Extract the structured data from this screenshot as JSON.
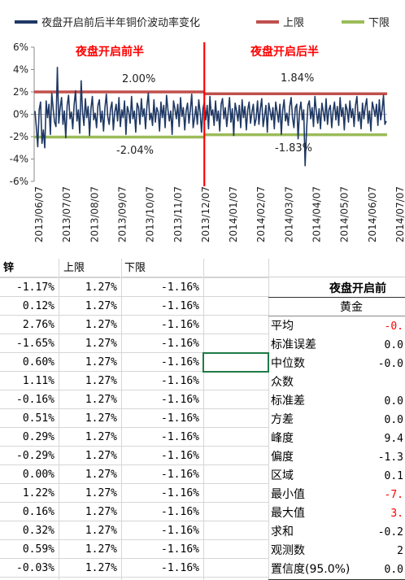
{
  "chart_data": {
    "type": "line",
    "legend": [
      {
        "name": "夜盘开启前后半年铜价波动率变化",
        "color": "#1f3864"
      },
      {
        "name": "上限",
        "color": "#c0504d"
      },
      {
        "name": "下限",
        "color": "#9bbb59"
      }
    ],
    "legend_position": "top",
    "y_ticks": [
      "6%",
      "4%",
      "2%",
      "0%",
      "-2%",
      "-4%",
      "-6%"
    ],
    "ylim": [
      -6,
      6
    ],
    "x_ticks": [
      "2013/06/07",
      "2013/07/07",
      "2013/08/07",
      "2013/09/07",
      "2013/10/07",
      "2013/11/07",
      "2013/12/07",
      "2014/01/07",
      "2014/02/07",
      "2014/03/07",
      "2014/04/07",
      "2014/05/07",
      "2014/06/07",
      "2014/07/07"
    ],
    "annotations": {
      "before_title": "夜盘开启前半",
      "after_title": "夜盘开启后半",
      "before_upper": "2.00%",
      "before_lower": "-2.04%",
      "after_upper": "1.84%",
      "after_lower": "-1.83%"
    },
    "bands": {
      "before_upper": 2.0,
      "before_lower": -2.04,
      "after_upper": 1.84,
      "after_lower": -1.83
    },
    "divider_color": "#ff0000",
    "series": {
      "values": [
        0.3,
        -1.2,
        -2.9,
        0.4,
        1.1,
        -2.6,
        -1.4,
        -3.0,
        1.2,
        -0.3,
        0.9,
        -1.8,
        1.9,
        0.5,
        -0.7,
        -1.1,
        4.2,
        -0.8,
        0.6,
        1.5,
        -0.9,
        0.3,
        -2.1,
        0.8,
        1.7,
        -0.4,
        0.2,
        -1.3,
        0.9,
        2.1,
        -0.6,
        0.4,
        -1.7,
        3.0,
        0.2,
        -1.0,
        1.4,
        -0.3,
        0.7,
        -1.9,
        0.5,
        1.6,
        -0.5,
        0.1,
        -1.2,
        0.8,
        1.3,
        -0.7,
        0.3,
        -1.5,
        0.6,
        1.8,
        -0.2,
        -0.9,
        0.5,
        1.1,
        -1.4,
        0.2,
        0.9,
        -0.6,
        1.5,
        -1.1,
        0.4,
        -0.3,
        1.2,
        -1.8,
        0.7,
        0.2,
        -0.8,
        1.6,
        -0.4,
        0.3,
        -1.6,
        1.0,
        0.6,
        -0.9,
        1.4,
        -0.2,
        0.5,
        -1.3,
        0.8,
        1.9,
        -0.5,
        0.1,
        -1.0,
        1.3,
        -0.7,
        0.6,
        0.2,
        -1.5,
        1.1,
        -0.3,
        0.8,
        -1.2,
        1.7,
        0.4,
        -0.6,
        0.3,
        -1.8,
        1.2,
        0.5,
        -0.4,
        0.9,
        -1.1,
        1.5,
        -0.2,
        0.6,
        -1.4,
        0.3,
        1.0,
        -0.8,
        0.4,
        1.8,
        -1.2,
        -0.3,
        0.7,
        -0.9,
        1.3,
        0.2,
        -1.6,
        0.5,
        1.1,
        -0.5,
        0.8,
        -1.3,
        1.6,
        -0.1,
        0.4,
        -1.0,
        1.2,
        -0.6,
        0.3,
        -1.5,
        0.9,
        1.4,
        -0.4,
        0.6,
        -1.1,
        0.2,
        1.5,
        -0.7,
        0.5,
        -1.9,
        1.0,
        0.3,
        -0.6,
        0.8,
        -1.2,
        1.3,
        -0.3,
        0.7,
        -1.4,
        0.4,
        1.1,
        -0.8,
        0.2,
        0.9,
        -1.0,
        -0.4,
        1.2,
        -0.9,
        0.5,
        1.4,
        -1.1,
        -0.2,
        0.8,
        -1.6,
        1.0,
        0.3,
        -0.5,
        0.6,
        -1.3,
        1.1,
        0.2,
        -0.7,
        0.9,
        -1.8,
        0.4,
        1.3,
        -0.6,
        0.1,
        -1.0,
        0.7,
        1.5,
        -0.3,
        -1.2,
        0.6,
        0.9,
        -2.2,
        0.3,
        1.1,
        -0.5,
        0.4,
        -4.6,
        -1.5,
        0.8,
        1.2,
        -0.4,
        0.6,
        -1.1,
        1.6,
        0.3,
        -0.8,
        0.5,
        -1.3,
        1.0,
        0.2,
        -0.6,
        1.4,
        -0.9,
        0.4,
        0.8,
        -1.2,
        0.3,
        1.1,
        -0.5,
        0.7,
        -1.0,
        1.5,
        -0.2,
        0.6,
        -1.4,
        0.9,
        0.4,
        -0.7,
        1.2,
        -0.3,
        0.5,
        -1.1,
        0.8,
        1.6,
        -0.6,
        0.2,
        -1.3,
        1.0,
        -0.4,
        0.7,
        1.4,
        -0.8,
        0.3,
        -1.5,
        1.1,
        0.5,
        -0.2,
        0.9,
        -1.0,
        1.3,
        -0.5,
        0.4,
        1.7,
        -0.9,
        -0.6
      ],
      "split_index": 121
    }
  },
  "sheet": {
    "headers": [
      "锌",
      "上限",
      "下限"
    ],
    "rows": [
      [
        "-1.17%",
        "1.27%",
        "-1.16%"
      ],
      [
        "0.12%",
        "1.27%",
        "-1.16%"
      ],
      [
        "2.76%",
        "1.27%",
        "-1.16%"
      ],
      [
        "-1.65%",
        "1.27%",
        "-1.16%"
      ],
      [
        "0.60%",
        "1.27%",
        "-1.16%"
      ],
      [
        "1.11%",
        "1.27%",
        "-1.16%"
      ],
      [
        "-0.16%",
        "1.27%",
        "-1.16%"
      ],
      [
        "0.51%",
        "1.27%",
        "-1.16%"
      ],
      [
        "0.29%",
        "1.27%",
        "-1.16%"
      ],
      [
        "-0.29%",
        "1.27%",
        "-1.16%"
      ],
      [
        "0.00%",
        "1.27%",
        "-1.16%"
      ],
      [
        "1.22%",
        "1.27%",
        "-1.16%"
      ],
      [
        "0.16%",
        "1.27%",
        "-1.16%"
      ],
      [
        "0.32%",
        "1.27%",
        "-1.16%"
      ],
      [
        "0.59%",
        "1.27%",
        "-1.16%"
      ],
      [
        "-0.03%",
        "1.27%",
        "-1.16%"
      ]
    ],
    "stats_title": "夜盘开启前",
    "stats_subtitle": "黄金",
    "stats": [
      {
        "label": "平均",
        "value": "-0.",
        "red": true
      },
      {
        "label": "标准误差",
        "value": "0.0",
        "red": false
      },
      {
        "label": "中位数",
        "value": "-0.0",
        "red": false
      },
      {
        "label": "众数",
        "value": "",
        "red": false
      },
      {
        "label": "标准差",
        "value": "0.0",
        "red": false
      },
      {
        "label": "方差",
        "value": "0.0",
        "red": false
      },
      {
        "label": "峰度",
        "value": "9.4",
        "red": false
      },
      {
        "label": "偏度",
        "value": "-1.3",
        "red": false
      },
      {
        "label": "区域",
        "value": "0.1",
        "red": false
      },
      {
        "label": "最小值",
        "value": "-7.",
        "red": true
      },
      {
        "label": "最大值",
        "value": "3.",
        "red": true
      },
      {
        "label": "求和",
        "value": "-0.2",
        "red": false
      },
      {
        "label": "观测数",
        "value": "2",
        "red": false
      },
      {
        "label": "置信度(95.0%)",
        "value": "0.0",
        "red": false
      }
    ]
  }
}
